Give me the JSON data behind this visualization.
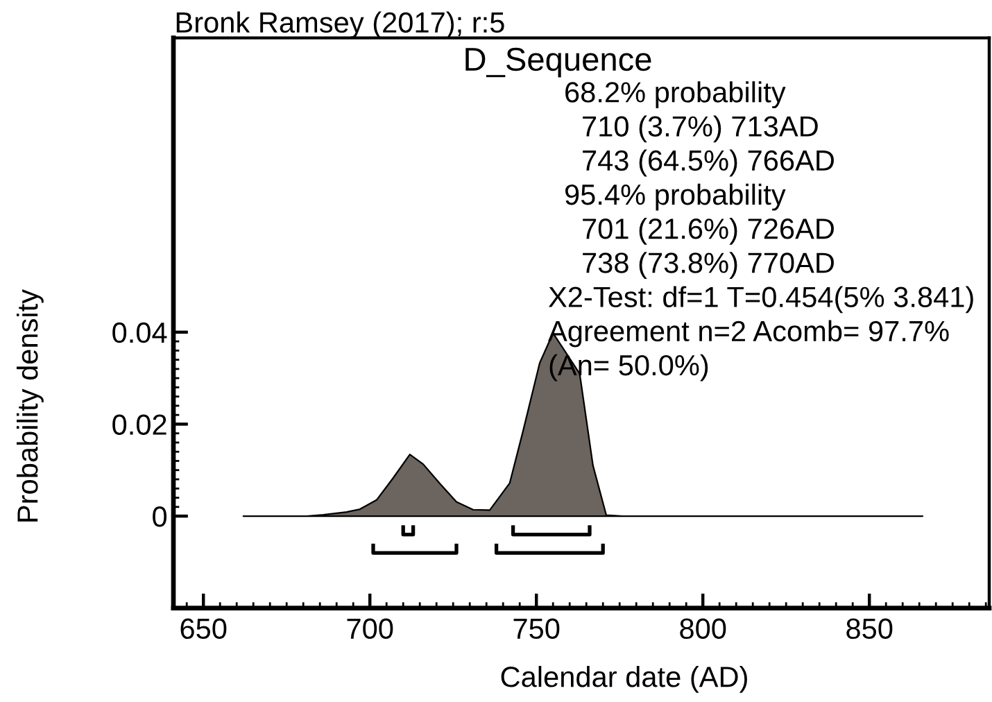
{
  "chart_data": {
    "type": "area",
    "title": "D_Sequence",
    "xlabel": "Calendar date (AD)",
    "ylabel": "Probability density",
    "annotations": [
      "Bronk Ramsey (2017); r:5",
      "68.2% probability",
      "710 (3.7%) 713AD",
      "743 (64.5%) 766AD",
      "95.4% probability",
      "701 (21.6%) 726AD",
      "738 (73.8%) 770AD",
      "X2-Test: df=1 T=0.454(5% 3.841)",
      "Agreement n=2 Acomb= 97.7%",
      "(An= 50.0%)"
    ],
    "series": [
      {
        "color": "#6b645f",
        "x": [
          662,
          681,
          686,
          693,
          697,
          702,
          707,
          712,
          716,
          721,
          726,
          731,
          736,
          742,
          746,
          751,
          755,
          763,
          767,
          771,
          776,
          866
        ],
        "values": [
          0,
          0,
          0.0003,
          0.0009,
          0.0015,
          0.0035,
          0.0083,
          0.0134,
          0.0113,
          0.0071,
          0.0031,
          0.0014,
          0.0013,
          0.0072,
          0.0185,
          0.0333,
          0.0398,
          0.031,
          0.011,
          0.0002,
          0,
          0
        ]
      },
      {
        "type": "line",
        "color": "#000000",
        "x": [
          710,
          710,
          713,
          713
        ],
        "values": [
          -0.002,
          -0.004,
          -0.004,
          -0.002
        ]
      },
      {
        "type": "line",
        "color": "#000000",
        "x": [
          743,
          743,
          766,
          766
        ],
        "values": [
          -0.002,
          -0.004,
          -0.004,
          -0.002
        ]
      },
      {
        "type": "line",
        "color": "#000000",
        "x": [
          701,
          701,
          726,
          726
        ],
        "values": [
          -0.006,
          -0.008,
          -0.008,
          -0.006
        ]
      },
      {
        "type": "line",
        "color": "#000000",
        "x": [
          738,
          738,
          770,
          770
        ],
        "values": [
          -0.006,
          -0.008,
          -0.008,
          -0.006
        ]
      }
    ],
    "xlim": [
      641,
      886
    ],
    "ylim": [
      -0.02,
      0.104
    ],
    "xticks": [
      650,
      700,
      750,
      800,
      850
    ],
    "yticks": [
      0,
      0.02,
      0.04
    ]
  }
}
